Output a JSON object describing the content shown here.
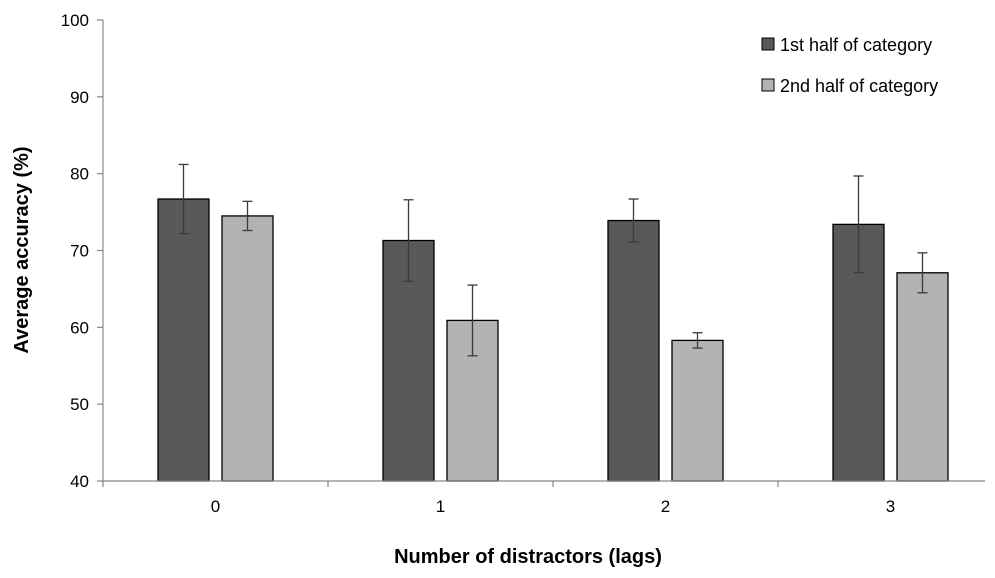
{
  "chart_data": {
    "type": "bar",
    "categories": [
      "0",
      "1",
      "2",
      "3"
    ],
    "series": [
      {
        "name": "1st half of category",
        "color": "#595959",
        "values": [
          76.7,
          71.3,
          73.9,
          73.4
        ],
        "error": [
          4.5,
          5.3,
          2.8,
          6.3
        ]
      },
      {
        "name": "2nd half of category",
        "color": "#b3b3b3",
        "values": [
          74.5,
          60.9,
          58.3,
          67.1
        ],
        "error": [
          1.9,
          4.6,
          1.0,
          2.6
        ]
      }
    ],
    "xlabel": "Number of distractors (lags)",
    "ylabel": "Average accuracy (%)",
    "ylim": [
      40,
      100
    ],
    "yticks": [
      40,
      50,
      60,
      70,
      80,
      90,
      100
    ],
    "grid": false,
    "legend_position": "top-right"
  }
}
